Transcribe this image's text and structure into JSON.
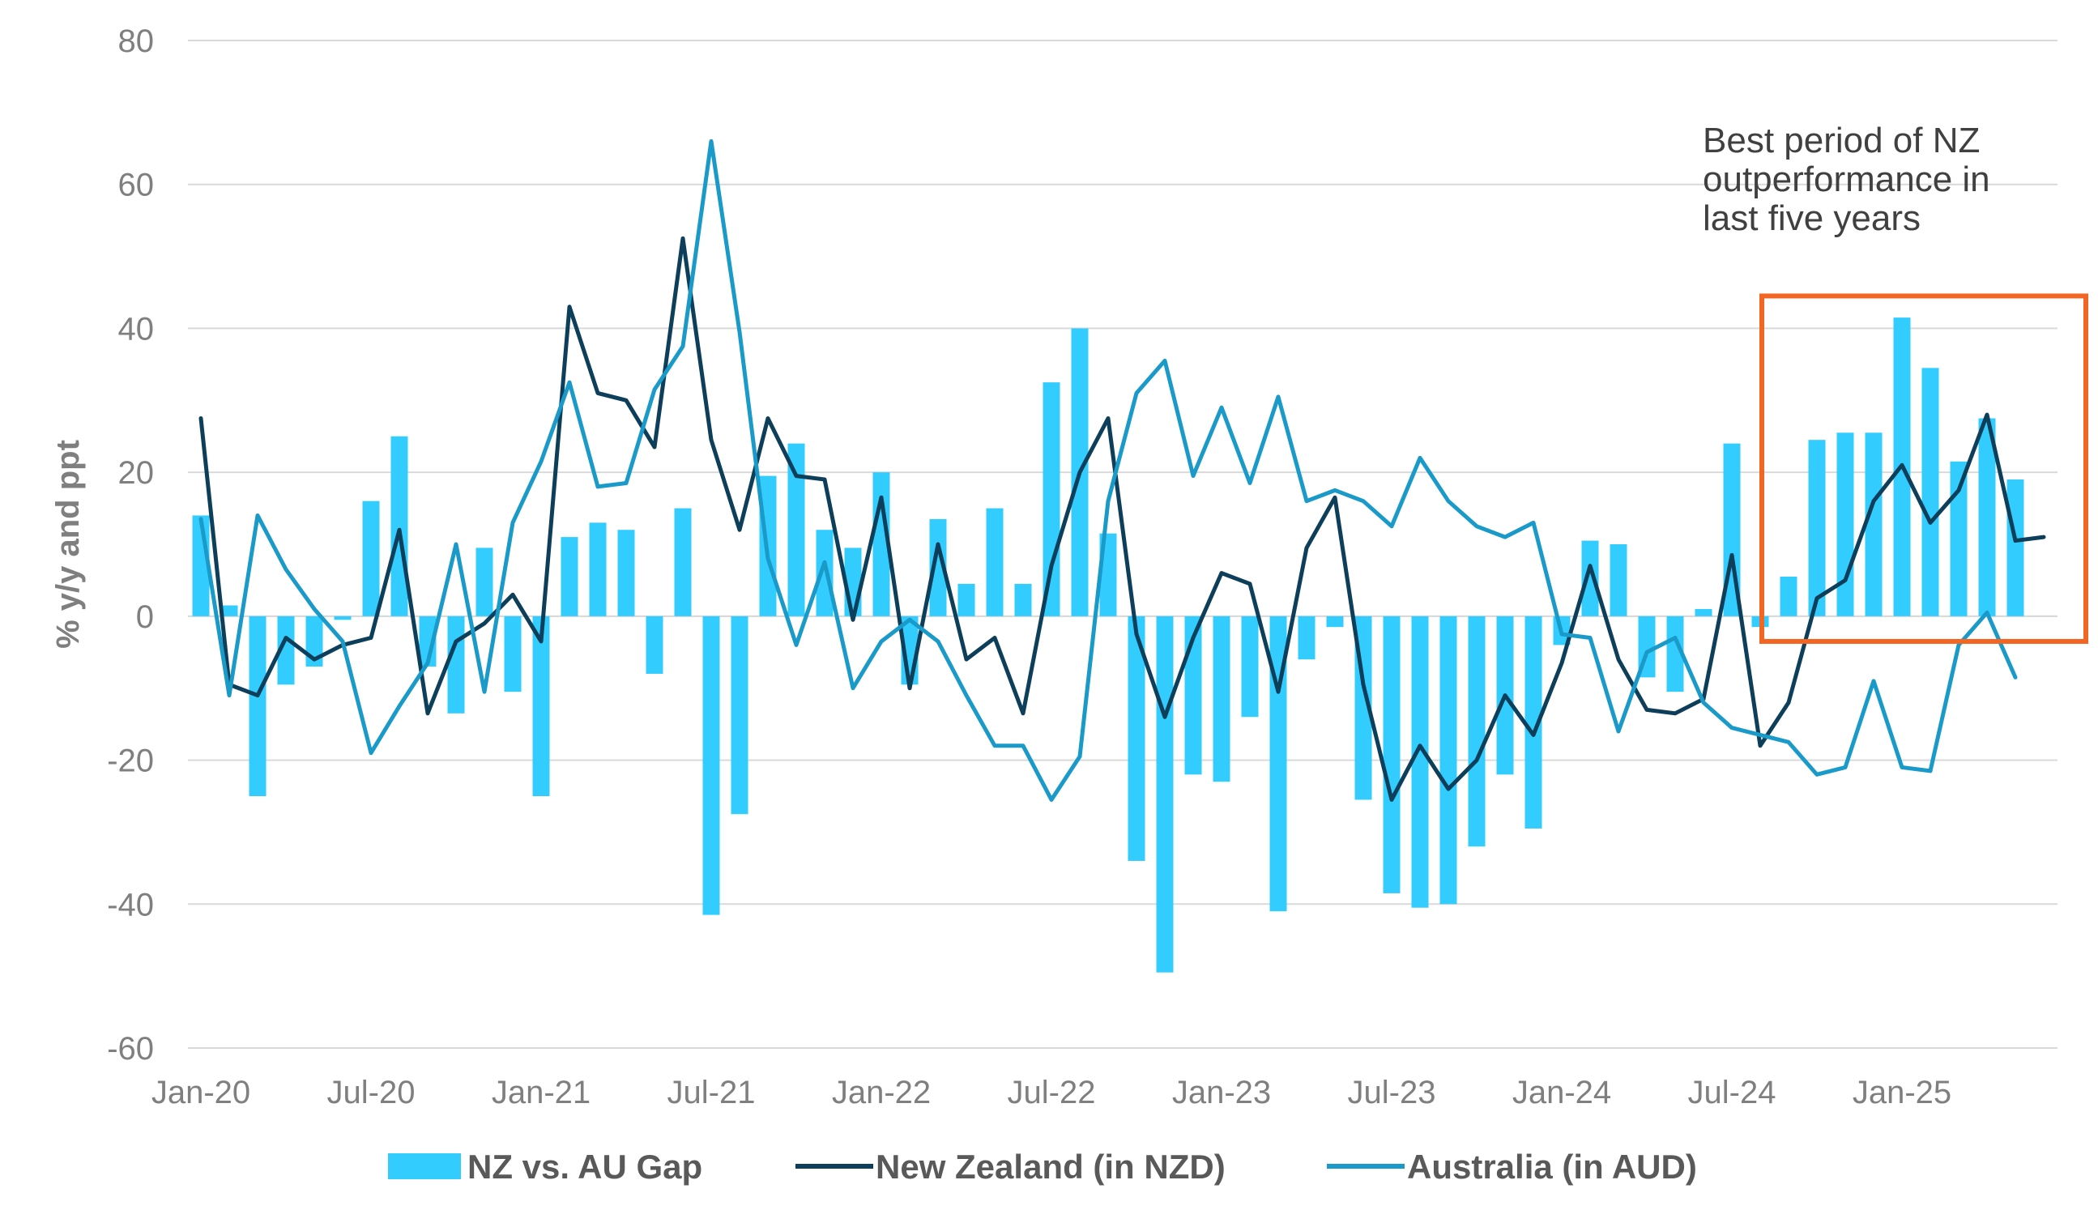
{
  "chart_data": {
    "type": "bar",
    "ylabel": "% y/y and ppt",
    "ylim": [
      -60,
      80
    ],
    "yticks": [
      80,
      60,
      40,
      20,
      0,
      -20,
      -40,
      -60
    ],
    "grid": "horizontal",
    "legend_placement": "bottom",
    "x": [
      "Jan-20",
      "Feb-20",
      "Mar-20",
      "Apr-20",
      "May-20",
      "Jun-20",
      "Jul-20",
      "Aug-20",
      "Sep-20",
      "Oct-20",
      "Nov-20",
      "Dec-20",
      "Jan-21",
      "Feb-21",
      "Mar-21",
      "Apr-21",
      "May-21",
      "Jun-21",
      "Jul-21",
      "Aug-21",
      "Sep-21",
      "Oct-21",
      "Nov-21",
      "Dec-21",
      "Jan-22",
      "Feb-22",
      "Mar-22",
      "Apr-22",
      "May-22",
      "Jun-22",
      "Jul-22",
      "Aug-22",
      "Sep-22",
      "Oct-22",
      "Nov-22",
      "Dec-22",
      "Jan-23",
      "Feb-23",
      "Mar-23",
      "Apr-23",
      "May-23",
      "Jun-23",
      "Jul-23",
      "Aug-23",
      "Sep-23",
      "Oct-23",
      "Nov-23",
      "Dec-23",
      "Jan-24",
      "Feb-24",
      "Mar-24",
      "Apr-24",
      "May-24",
      "Jun-24",
      "Jul-24",
      "Aug-24",
      "Sep-24",
      "Oct-24",
      "Nov-24",
      "Dec-24",
      "Jan-25",
      "Feb-25",
      "Mar-25",
      "Apr-25",
      "May-25",
      "Jun-25",
      "Jul-25"
    ],
    "x_tick_labels": [
      {
        "label": "Jan-20",
        "index": 0
      },
      {
        "label": "Jul-20",
        "index": 6
      },
      {
        "label": "Jan-21",
        "index": 12
      },
      {
        "label": "Jul-21",
        "index": 18
      },
      {
        "label": "Jan-22",
        "index": 24
      },
      {
        "label": "Jul-22",
        "index": 30
      },
      {
        "label": "Jan-23",
        "index": 36
      },
      {
        "label": "Jul-23",
        "index": 42
      },
      {
        "label": "Jan-24",
        "index": 48
      },
      {
        "label": "Jul-24",
        "index": 54
      },
      {
        "label": "Jan-25",
        "index": 60
      }
    ],
    "series": [
      {
        "name": "NZ vs. AU Gap",
        "type": "bar",
        "color": "#33ccff",
        "values": [
          14,
          1.5,
          -25,
          -9.5,
          -7,
          -0.5,
          16,
          25,
          -7,
          -13.5,
          9.5,
          -10.5,
          -25,
          11,
          13,
          12,
          -8,
          15,
          -41.5,
          -27.5,
          19.5,
          24,
          12,
          9.5,
          20,
          -9.5,
          13.5,
          4.5,
          15,
          4.5,
          32.5,
          40,
          11.5,
          -34,
          -49.5,
          -22,
          -23,
          -14,
          -41,
          -6,
          -1.5,
          -25.5,
          -38.5,
          -40.5,
          -40,
          -32,
          -22,
          -29.5,
          -4,
          10.5,
          10,
          -8.5,
          -10.5,
          1,
          24,
          -1.5,
          5.5,
          24.5,
          25.5,
          25.5,
          41.5,
          34.5,
          21.5,
          27.5,
          19,
          null,
          null
        ]
      },
      {
        "name": "New Zealand (in NZD)",
        "type": "line",
        "color": "#0e3f5a",
        "values": [
          27.5,
          -9.5,
          -11,
          -3,
          -6,
          -4,
          -3,
          12,
          -13.5,
          -3.5,
          -1,
          3,
          -3.5,
          43,
          31,
          30,
          23.5,
          52.5,
          24.5,
          12,
          27.5,
          19.5,
          19,
          -0.5,
          16.5,
          -10,
          10,
          -6,
          -3,
          -13.5,
          7,
          20,
          27.5,
          -2.5,
          -14,
          -3,
          6,
          4.5,
          -10.5,
          9.5,
          16.5,
          -9.5,
          -25.5,
          -18,
          -24,
          -20,
          -11,
          -16.5,
          -6.5,
          7,
          -6,
          -13,
          -13.5,
          -11.5,
          8.5,
          -18,
          -12,
          2.5,
          5,
          16,
          21,
          13,
          17.5,
          28,
          10.5,
          11,
          null
        ]
      },
      {
        "name": "Australia (in AUD)",
        "type": "line",
        "color": "#1a9ac9",
        "values": [
          13.5,
          -11,
          14,
          6.5,
          1,
          -3.5,
          -19,
          -12.5,
          -6.5,
          10,
          -10.5,
          13,
          21.5,
          32.5,
          18,
          18.5,
          31.5,
          37.5,
          66,
          39.5,
          8,
          -4,
          7.5,
          -10,
          -3.5,
          -0.5,
          -3.5,
          -11,
          -18,
          -18,
          -25.5,
          -19.5,
          16,
          31,
          35.5,
          19.5,
          29,
          18.5,
          30.5,
          16,
          17.5,
          16,
          12.5,
          22,
          16,
          12.5,
          11,
          13,
          -2.5,
          -3,
          -16,
          -5,
          -3,
          -12,
          -15.5,
          -16.5,
          -17.5,
          -22,
          -21,
          -9,
          -21,
          -21.5,
          -4,
          0.5,
          -8.5,
          null,
          null
        ]
      }
    ],
    "annotations": [
      {
        "lines": [
          "Best period of NZ",
          "outperformance in",
          "last five years"
        ],
        "box_color": "#f26522",
        "box_start": "Sep-24",
        "box_end": "Jul-25",
        "box_range": [
          -3.5,
          44.5
        ]
      }
    ]
  }
}
